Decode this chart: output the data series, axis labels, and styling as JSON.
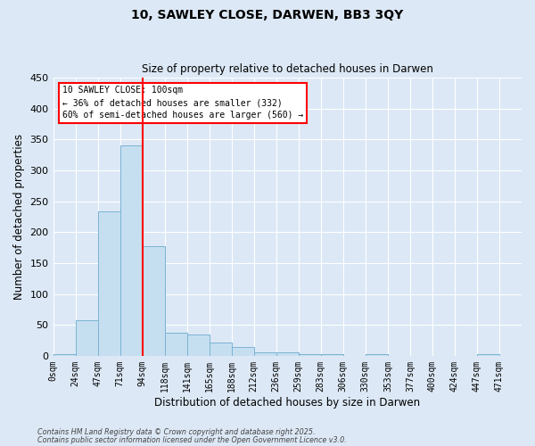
{
  "title": "10, SAWLEY CLOSE, DARWEN, BB3 3QY",
  "subtitle": "Size of property relative to detached houses in Darwen",
  "xlabel": "Distribution of detached houses by size in Darwen",
  "ylabel": "Number of detached properties",
  "bin_labels": [
    "0sqm",
    "24sqm",
    "47sqm",
    "71sqm",
    "94sqm",
    "118sqm",
    "141sqm",
    "165sqm",
    "188sqm",
    "212sqm",
    "236sqm",
    "259sqm",
    "283sqm",
    "306sqm",
    "330sqm",
    "353sqm",
    "377sqm",
    "400sqm",
    "424sqm",
    "447sqm",
    "471sqm"
  ],
  "bar_values": [
    2,
    57,
    234,
    341,
    178,
    38,
    34,
    22,
    14,
    5,
    6,
    2,
    2,
    0,
    2,
    0,
    0,
    0,
    0,
    3,
    0
  ],
  "bar_color": "#c6dff0",
  "bar_edge_color": "#7ab3d3",
  "vline_x": 4,
  "vline_color": "red",
  "ylim": [
    0,
    450
  ],
  "annotation_title": "10 SAWLEY CLOSE: 100sqm",
  "annotation_line1": "← 36% of detached houses are smaller (332)",
  "annotation_line2": "60% of semi-detached houses are larger (560) →",
  "annotation_box_color": "white",
  "annotation_box_edge": "red",
  "footnote1": "Contains HM Land Registry data © Crown copyright and database right 2025.",
  "footnote2": "Contains public sector information licensed under the Open Government Licence v3.0.",
  "background_color": "#dce8f5",
  "plot_background": "#dce8f5"
}
